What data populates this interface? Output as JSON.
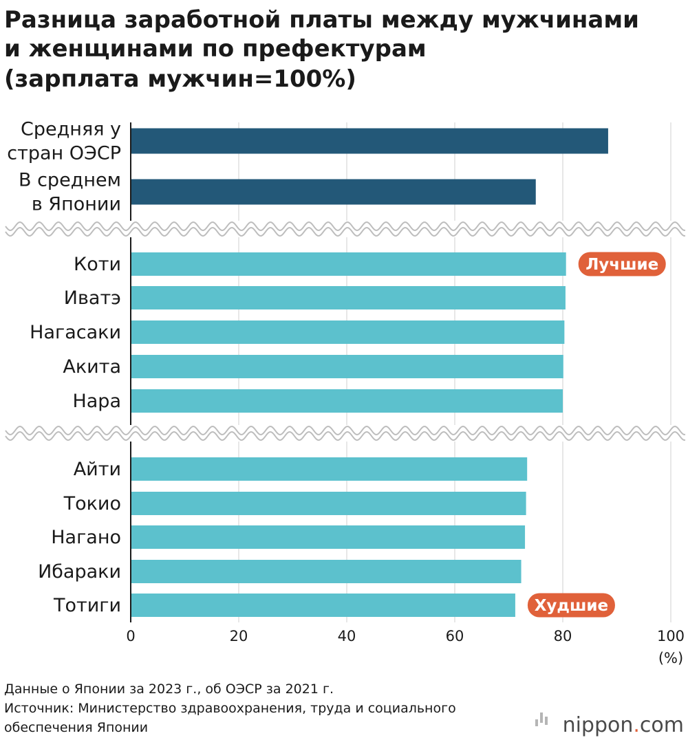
{
  "chart_data": {
    "type": "bar",
    "orientation": "horizontal",
    "title_lines": [
      "Разница заработной платы между мужчинами",
      "и женщинами по префектурам",
      "(зарплата мужчин=100%)"
    ],
    "groups": [
      {
        "color": "#235878",
        "items": [
          {
            "label_lines": [
              "Средняя у",
              "стран ОЭСР"
            ],
            "value": 88.4
          },
          {
            "label_lines": [
              "В среднем",
              "в Японии"
            ],
            "value": 75.0
          }
        ]
      },
      {
        "color": "#5cc1cd",
        "items": [
          {
            "label_lines": [
              "Коти"
            ],
            "value": 80.6
          },
          {
            "label_lines": [
              "Иватэ"
            ],
            "value": 80.5
          },
          {
            "label_lines": [
              "Нагасаки"
            ],
            "value": 80.3
          },
          {
            "label_lines": [
              "Акита"
            ],
            "value": 80.1
          },
          {
            "label_lines": [
              "Нара"
            ],
            "value": 80.0
          }
        ]
      },
      {
        "color": "#5cc1cd",
        "items": [
          {
            "label_lines": [
              "Айти"
            ],
            "value": 73.4
          },
          {
            "label_lines": [
              "Токио"
            ],
            "value": 73.2
          },
          {
            "label_lines": [
              "Нагано"
            ],
            "value": 73.0
          },
          {
            "label_lines": [
              "Ибараки"
            ],
            "value": 72.3
          },
          {
            "label_lines": [
              "Тотиги"
            ],
            "value": 71.2
          }
        ]
      }
    ],
    "x_ticks": [
      0,
      20,
      40,
      60,
      80,
      100
    ],
    "x_unit": "(%)",
    "xlim": [
      0,
      100
    ],
    "grid": true,
    "badges": [
      {
        "text": "Лучшие",
        "group": 1,
        "item": 0,
        "color": "#e0613a"
      },
      {
        "text": "Худшие",
        "group": 2,
        "item": 4,
        "color": "#e0613a"
      }
    ],
    "notes": [
      "Данные о Японии за 2023 г., об ОЭСР за 2021 г.",
      "Источник: Министерство здравоохранения, труда и социального",
      "обеспечения Японии"
    ]
  },
  "brand": {
    "name": "nippon",
    "dot": ".",
    "suffix": "com",
    "dot_color": "#e0613a"
  }
}
